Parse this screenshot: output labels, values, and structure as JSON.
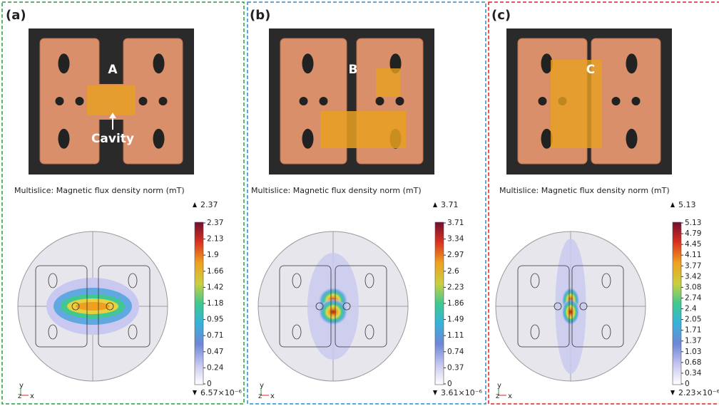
{
  "panels": [
    {
      "label": "(a)",
      "photo_labels": [
        "A",
        "Cavity"
      ],
      "plot_title": "Multislice: Magnetic flux density norm (mT)",
      "max_label": "2.37",
      "colorbar_ticks": [
        "2.37",
        "2.13",
        "1.9",
        "1.66",
        "1.42",
        "1.18",
        "0.95",
        "0.71",
        "0.47",
        "0.24",
        "0"
      ],
      "min_label": "6.57×10⁻⁶",
      "axes": [
        "y",
        "z",
        "x"
      ]
    },
    {
      "label": "(b)",
      "photo_labels": [
        "B"
      ],
      "plot_title": "Multislice: Magnetic flux density norm (mT)",
      "max_label": "3.71",
      "colorbar_ticks": [
        "3.71",
        "3.34",
        "2.97",
        "2.6",
        "2.23",
        "1.86",
        "1.49",
        "1.11",
        "0.74",
        "0.37",
        "0"
      ],
      "min_label": "3.61×10⁻⁶",
      "axes": [
        "y",
        "z",
        "x"
      ]
    },
    {
      "label": "(c)",
      "photo_labels": [
        "C"
      ],
      "plot_title": "Multislice: Magnetic flux density norm (mT)",
      "max_label": "5.13",
      "colorbar_ticks": [
        "5.13",
        "4.79",
        "4.45",
        "4.11",
        "3.77",
        "3.42",
        "3.08",
        "2.74",
        "2.4",
        "2.05",
        "1.71",
        "1.37",
        "1.03",
        "0.68",
        "0.34",
        "0"
      ],
      "min_label": "2.23×10⁻⁶",
      "axes": [
        "y",
        "z",
        "x"
      ]
    }
  ]
}
